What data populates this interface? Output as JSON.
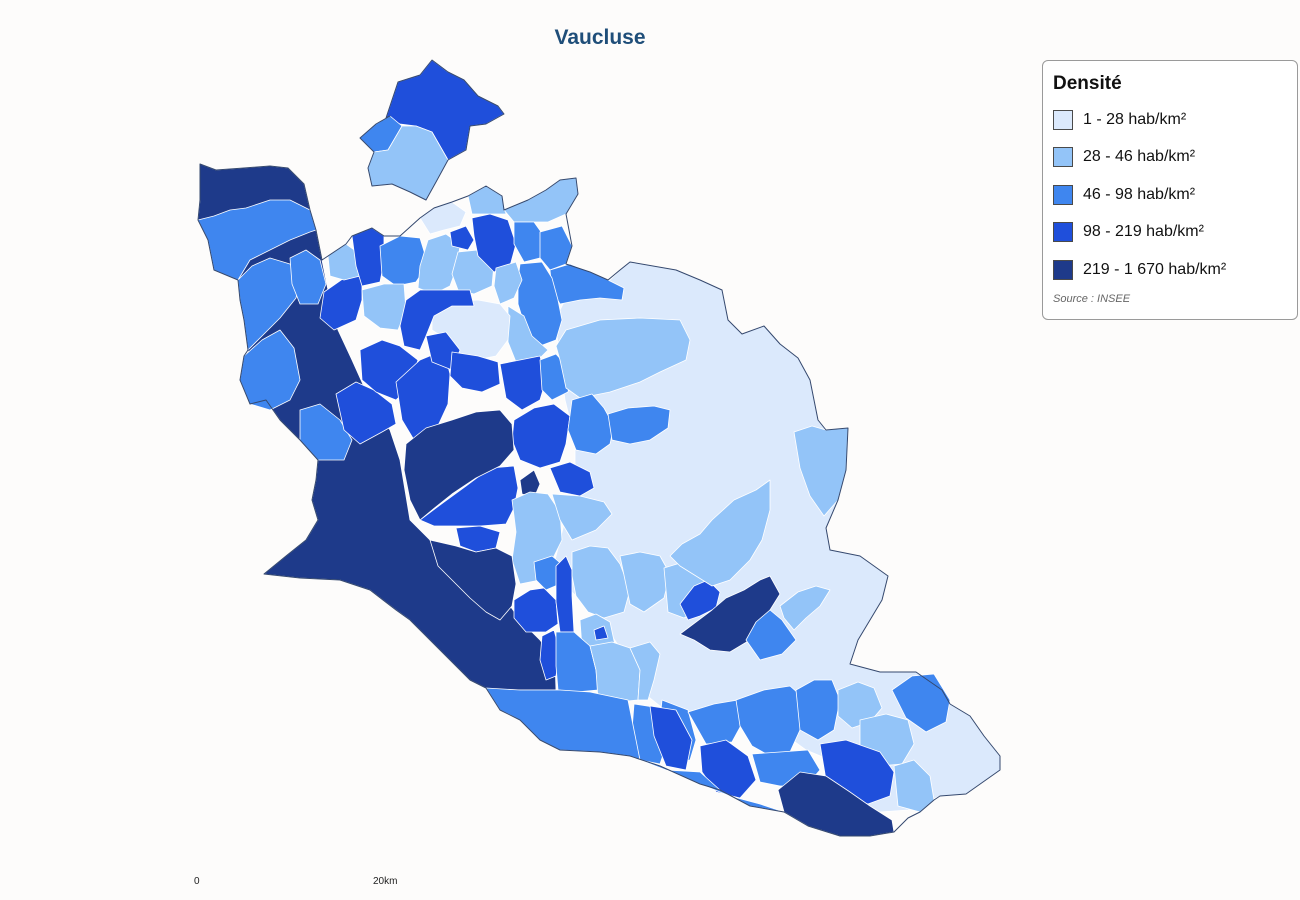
{
  "title": "Vaucluse",
  "legend": {
    "title": "Densité",
    "classes": [
      {
        "label": "1 - 28 hab/km²",
        "color": "#dbe9fc"
      },
      {
        "label": "28 - 46 hab/km²",
        "color": "#93c4f8"
      },
      {
        "label": "46 - 98 hab/km²",
        "color": "#3f86ef"
      },
      {
        "label": "98 - 219 hab/km²",
        "color": "#1f4fdb"
      },
      {
        "label": "219 - 1 670 hab/km²",
        "color": "#1e3a8a"
      }
    ],
    "source": "Source : INSEE"
  },
  "scale": {
    "start": "0",
    "end": "20km"
  }
}
